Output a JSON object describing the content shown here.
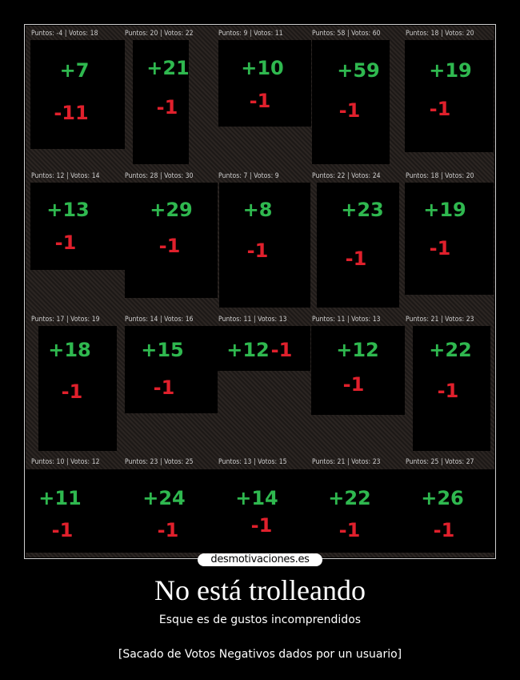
{
  "poster": {
    "logo_text": "desmotivaciones.es",
    "title": "No está trolleando",
    "subtitle": "Esque es de gustos incomprendidos",
    "caption": "[Sacado de Votos Negativos dados por un usuario]"
  },
  "colors": {
    "positive": "#2fb84f",
    "negative": "#e0202c",
    "background": "#000000"
  },
  "cells": [
    {
      "header": "Puntos: -4 | Votos: 18",
      "plus": "+7",
      "minus": "-11"
    },
    {
      "header": "Puntos: 20 | Votos: 22",
      "plus": "+21",
      "minus": "-1"
    },
    {
      "header": "Puntos: 9 | Votos: 11",
      "plus": "+10",
      "minus": "-1"
    },
    {
      "header": "Puntos: 58 | Votos: 60",
      "plus": "+59",
      "minus": "-1"
    },
    {
      "header": "Puntos: 18 | Votos: 20",
      "plus": "+19",
      "minus": "-1"
    },
    {
      "header": "Puntos: 12 | Votos: 14",
      "plus": "+13",
      "minus": "-1"
    },
    {
      "header": "Puntos: 28 | Votos: 30",
      "plus": "+29",
      "minus": "-1"
    },
    {
      "header": "Puntos: 7 | Votos: 9",
      "plus": "+8",
      "minus": "-1"
    },
    {
      "header": "Puntos: 22 | Votos: 24",
      "plus": "+23",
      "minus": "-1"
    },
    {
      "header": "Puntos: 18 | Votos: 20",
      "plus": "+19",
      "minus": "-1"
    },
    {
      "header": "Puntos: 17 | Votos: 19",
      "plus": "+18",
      "minus": "-1"
    },
    {
      "header": "Puntos: 14 | Votos: 16",
      "plus": "+15",
      "minus": "-1"
    },
    {
      "header": "Puntos: 11 | Votos: 13",
      "plus": "+12",
      "minus": "-1"
    },
    {
      "header": "Puntos: 11 | Votos: 13",
      "plus": "+12",
      "minus": "-1"
    },
    {
      "header": "Puntos: 21 | Votos: 23",
      "plus": "+22",
      "minus": "-1"
    },
    {
      "header": "Puntos: 10 | Votos: 12",
      "plus": "+11",
      "minus": "-1"
    },
    {
      "header": "Puntos: 23 | Votos: 25",
      "plus": "+24",
      "minus": "-1"
    },
    {
      "header": "Puntos: 13 | Votos: 15",
      "plus": "+14",
      "minus": "-1"
    },
    {
      "header": "Puntos: 21 | Votos: 23",
      "plus": "+22",
      "minus": "-1"
    },
    {
      "header": "Puntos: 25 | Votos: 27",
      "plus": "+26",
      "minus": "-1"
    }
  ]
}
